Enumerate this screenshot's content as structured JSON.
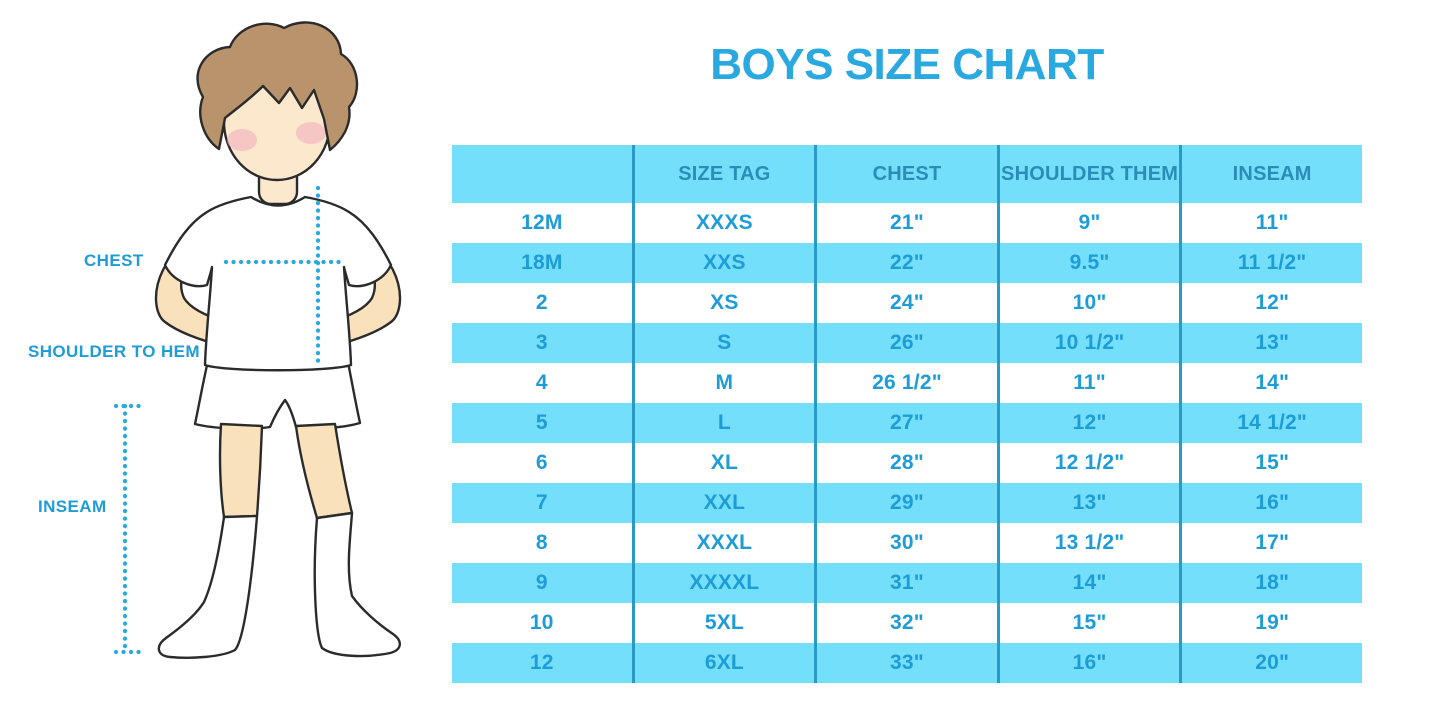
{
  "title": "BOYS SIZE CHART",
  "figure_labels": {
    "chest": "CHEST",
    "shoulder_to_hem": "SHOULDER TO HEM",
    "inseam": "INSEAM"
  },
  "colors": {
    "accent": "#29A9E0",
    "label_blue": "#1F9CD8",
    "row_blue": "#74DFFA",
    "divider": "#2B99C7",
    "header_text": "#2A8CB8",
    "cell_text": "#1E9CD7",
    "hair": "#B9936B",
    "face": "#FBE8CD",
    "skin": "#F9E2BB",
    "blush": "#F4AFC0",
    "outline": "#2B2B2B"
  },
  "chart_data": {
    "type": "table",
    "columns": [
      "",
      "SIZE TAG",
      "CHEST",
      "SHOULDER THEM",
      "INSEAM"
    ],
    "rows": [
      [
        "12M",
        "XXXS",
        "21\"",
        "9\"",
        "11\""
      ],
      [
        "18M",
        "XXS",
        "22\"",
        "9.5\"",
        "11 1/2\""
      ],
      [
        "2",
        "XS",
        "24\"",
        "10\"",
        "12\""
      ],
      [
        "3",
        "S",
        "26\"",
        "10 1/2\"",
        "13\""
      ],
      [
        "4",
        "M",
        "26 1/2\"",
        "11\"",
        "14\""
      ],
      [
        "5",
        "L",
        "27\"",
        "12\"",
        "14 1/2\""
      ],
      [
        "6",
        "XL",
        "28\"",
        "12 1/2\"",
        "15\""
      ],
      [
        "7",
        "XXL",
        "29\"",
        "13\"",
        "16\""
      ],
      [
        "8",
        "XXXL",
        "30\"",
        "13 1/2\"",
        "17\""
      ],
      [
        "9",
        "XXXXL",
        "31\"",
        "14\"",
        "18\""
      ],
      [
        "10",
        "5XL",
        "32\"",
        "15\"",
        "19\""
      ],
      [
        "12",
        "6XL",
        "33\"",
        "16\"",
        "20\""
      ]
    ]
  }
}
